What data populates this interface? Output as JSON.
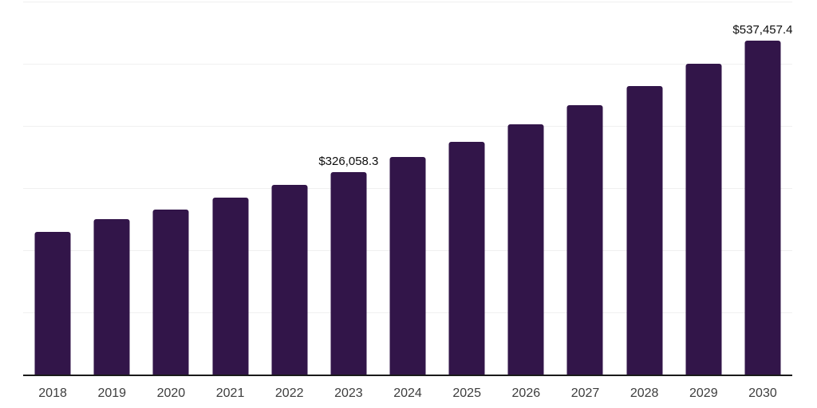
{
  "chart_data": {
    "type": "bar",
    "title": "",
    "xlabel": "",
    "ylabel": "",
    "categories": [
      "2018",
      "2019",
      "2020",
      "2021",
      "2022",
      "2023",
      "2024",
      "2025",
      "2026",
      "2027",
      "2028",
      "2029",
      "2030"
    ],
    "values": [
      230000,
      250000,
      266000,
      284500,
      305000,
      326058.3,
      349500,
      374500,
      403000,
      433000,
      464500,
      500000,
      537457.4
    ],
    "value_labels": [
      {
        "index": 5,
        "text": "$326,058.3"
      },
      {
        "index": 12,
        "text": "$537,457.4"
      }
    ],
    "ylim": [
      0,
      600000
    ],
    "gridline_interval": 100000,
    "grid": "horizontal",
    "legend": "none",
    "y_tick_labels_visible": false,
    "colors": {
      "bar": "#321549",
      "gridline": "#f0f0f0",
      "axis_line": "#1a1a1a",
      "tick_label": "#3d3d3d",
      "value_label": "#0d0d0d",
      "background": "#ffffff"
    }
  }
}
